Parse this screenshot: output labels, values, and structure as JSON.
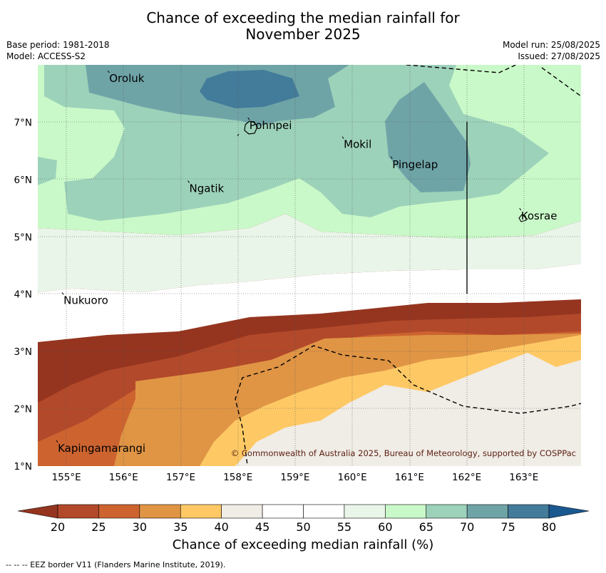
{
  "title_line1": "Chance of exceeding the median rainfall for",
  "title_line2": "November 2025",
  "base_period": "Base period: 1981-2018",
  "model": "Model: ACCESS-S2",
  "model_run": "Model run: 25/08/2025",
  "issued": "Issued: 27/08/2025",
  "map": {
    "lon_range": [
      154.5,
      164
    ],
    "lat_range": [
      1,
      8
    ],
    "lon_ticks": [
      "155°E",
      "156°E",
      "157°E",
      "158°E",
      "159°E",
      "160°E",
      "161°E",
      "162°E",
      "163°E"
    ],
    "lat_ticks": [
      "1°N",
      "2°N",
      "3°N",
      "4°N",
      "5°N",
      "6°N",
      "7°N"
    ],
    "places": [
      {
        "name": "Oroluk",
        "lon": 155.75,
        "lat": 7.7
      },
      {
        "name": "Pohnpei",
        "lon": 158.2,
        "lat": 6.88
      },
      {
        "name": "Mokil",
        "lon": 159.85,
        "lat": 6.55
      },
      {
        "name": "Pingelap",
        "lon": 160.7,
        "lat": 6.2
      },
      {
        "name": "Ngatik",
        "lon": 157.15,
        "lat": 5.78
      },
      {
        "name": "Kosrae",
        "lon": 162.95,
        "lat": 5.3
      },
      {
        "name": "Nukuoro",
        "lon": 154.95,
        "lat": 3.83
      },
      {
        "name": "Kapingamarangi",
        "lon": 154.85,
        "lat": 1.25
      }
    ],
    "copyright": "© Commonwealth of Australia 2025, Bureau of Meteorology, supported by COSPPac"
  },
  "colorbar": {
    "ticks": [
      "20",
      "25",
      "30",
      "35",
      "40",
      "45",
      "50",
      "55",
      "60",
      "65",
      "70",
      "75",
      "80"
    ],
    "colors": [
      "#b2492a",
      "#cd6430",
      "#e09545",
      "#fec965",
      "#f0ece6",
      "#ffffff",
      "#ffffff",
      "#eaf5ea",
      "#caf9c9",
      "#9dd2ba",
      "#6fa4a7",
      "#437b9a"
    ],
    "under_color": "#953520",
    "over_color": "#1a5890",
    "label": "Chance of exceeding median rainfall (%)"
  },
  "footnote": "--  --  -- EEZ border V11 (Flanders Marine Institute, 2019)."
}
